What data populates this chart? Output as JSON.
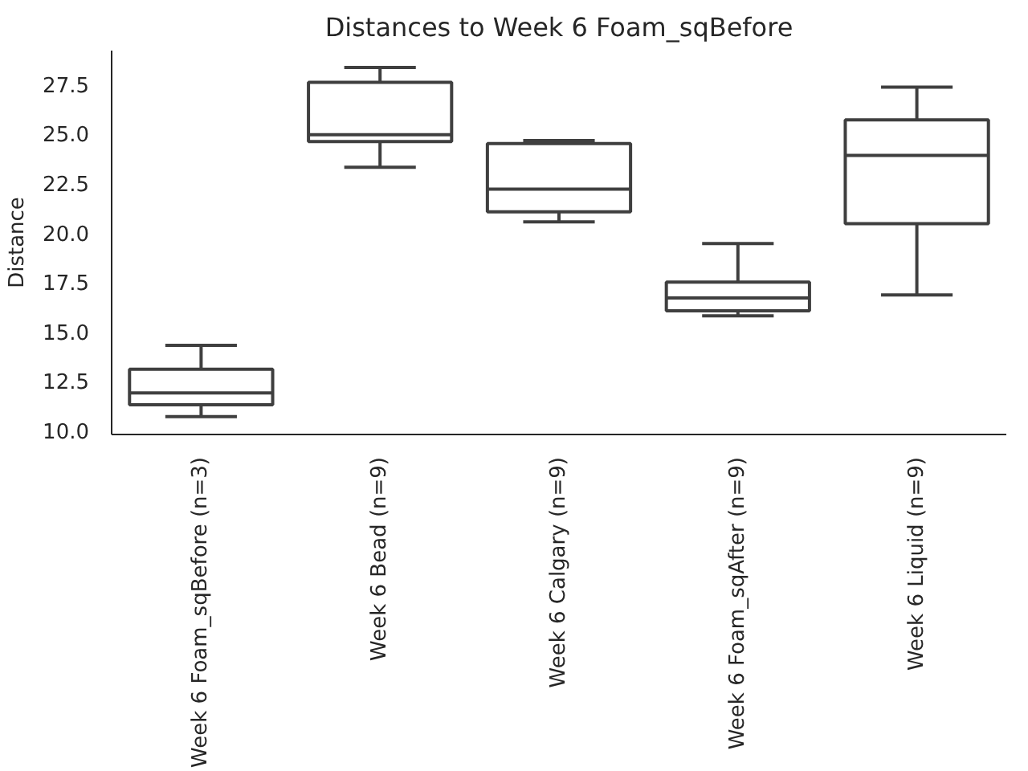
{
  "chart_data": {
    "type": "box",
    "title": "Distances to Week 6 Foam_sqBefore",
    "ylabel": "Distance",
    "categories": [
      "Week 6 Foam_sqBefore (n=3)",
      "Week 6 Bead (n=9)",
      "Week 6 Calgary (n=9)",
      "Week 6 Foam_sqAfter (n=9)",
      "Week 6 Liquid (n=9)"
    ],
    "boxes": [
      {
        "low": 10.7,
        "q1": 11.3,
        "median": 11.9,
        "q3": 13.1,
        "high": 14.3
      },
      {
        "low": 23.3,
        "q1": 24.6,
        "median": 24.95,
        "q3": 27.6,
        "high": 28.35
      },
      {
        "low": 20.55,
        "q1": 21.05,
        "median": 22.2,
        "q3": 24.5,
        "high": 24.65
      },
      {
        "low": 15.8,
        "q1": 16.05,
        "median": 16.7,
        "q3": 17.5,
        "high": 19.45
      },
      {
        "low": 16.85,
        "q1": 20.45,
        "median": 23.9,
        "q3": 25.7,
        "high": 27.35
      }
    ],
    "color": "#3f3f3f",
    "ylim": [
      9.8,
      29.2
    ],
    "yticks": [
      {
        "value": 10,
        "label": "10.0"
      },
      12.5,
      {
        "value": 15,
        "label": "15.0"
      },
      17.5,
      {
        "value": 20,
        "label": "20.0"
      },
      22.5,
      {
        "value": 25,
        "label": "25.0"
      },
      27.5
    ],
    "grid": false
  }
}
